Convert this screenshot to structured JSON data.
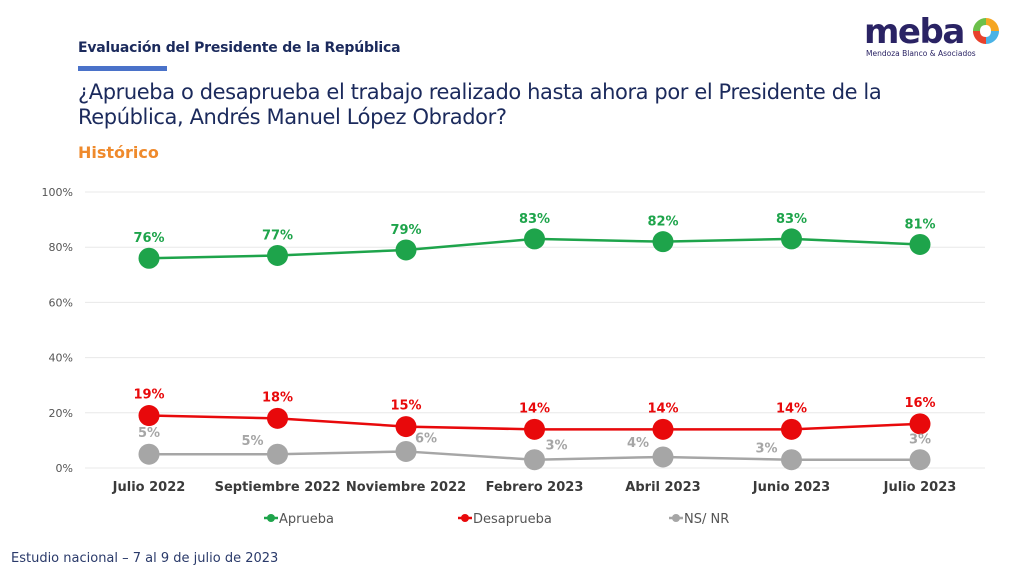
{
  "header": {
    "section_title": "Evaluación del Presidente de la República",
    "question": "¿Aprueba o desaprueba el trabajo realizado hasta ahora por el Presidente de la República, Andrés Manuel López Obrador?",
    "subtitle": "Histórico"
  },
  "logo": {
    "name": "meba",
    "tagline": "Mendoza Blanco & Asociados"
  },
  "footer": {
    "note": "Estudio nacional – 7 al 9 de julio de 2023"
  },
  "colors": {
    "title": "#1b2a5c",
    "accent_underline": "#4a72c9",
    "subtitle": "#ef8a2c",
    "aprueba": "#1ea44b",
    "desaprueba": "#e8090b",
    "ns_nr": "#a6a6a6"
  },
  "chart_data": {
    "type": "line",
    "title": "¿Aprueba o desaprueba el trabajo realizado hasta ahora por el Presidente de la República, Andrés Manuel López Obrador?",
    "subtitle": "Histórico",
    "xlabel": "",
    "ylabel": "",
    "ylim": [
      0,
      100
    ],
    "yticks": [
      0,
      20,
      40,
      60,
      80,
      100
    ],
    "ytick_labels": [
      "0%",
      "20%",
      "40%",
      "60%",
      "80%",
      "100%"
    ],
    "grid": true,
    "legend_position": "bottom",
    "categories": [
      "Julio 2022",
      "Septiembre 2022",
      "Noviembre 2022",
      "Febrero 2023",
      "Abril 2023",
      "Junio 2023",
      "Julio 2023"
    ],
    "series": [
      {
        "name": "Aprueba",
        "color": "#1ea44b",
        "values": [
          76,
          77,
          79,
          83,
          82,
          83,
          81
        ],
        "labels": [
          "76%",
          "77%",
          "79%",
          "83%",
          "82%",
          "83%",
          "81%"
        ]
      },
      {
        "name": "Desaprueba",
        "color": "#e8090b",
        "values": [
          19,
          18,
          15,
          14,
          14,
          14,
          16
        ],
        "labels": [
          "19%",
          "18%",
          "15%",
          "14%",
          "14%",
          "14%",
          "16%"
        ]
      },
      {
        "name": "NS/ NR",
        "color": "#a6a6a6",
        "values": [
          5,
          5,
          6,
          3,
          4,
          3,
          3
        ],
        "labels": [
          "5%",
          "5%",
          "6%",
          "3%",
          "4%",
          "3%",
          "3%"
        ]
      }
    ]
  }
}
